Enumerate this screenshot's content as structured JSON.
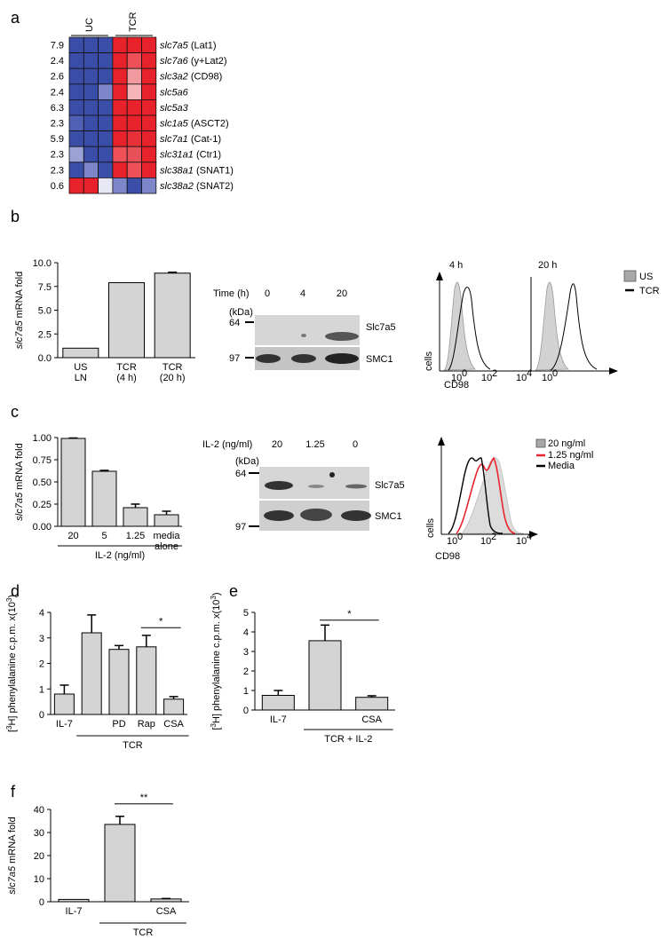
{
  "colors": {
    "blue": "#3a4fa8",
    "red": "#e8252d",
    "bar": "#d4d4d4",
    "flow_red": "#e8252d",
    "flow_grey": "#c8c8c8"
  },
  "panels": {
    "a": "a",
    "b": "b",
    "c": "c",
    "d": "d",
    "e": "e",
    "f": "f"
  },
  "heatmap": {
    "groups": [
      "UC",
      "TCR"
    ],
    "rows": [
      {
        "fold": "7.9",
        "gene": "slc7a5",
        "name": " (Lat1)"
      },
      {
        "fold": "2.4",
        "gene": "slc7a6",
        "name": " (y+Lat2)"
      },
      {
        "fold": "2.6",
        "gene": "slc3a2",
        "name": " (CD98)"
      },
      {
        "fold": "2.4",
        "gene": "slc5a6",
        "name": ""
      },
      {
        "fold": "6.3",
        "gene": "slc5a3",
        "name": ""
      },
      {
        "fold": "2.3",
        "gene": "slc1a5",
        "name": " (ASCT2)"
      },
      {
        "fold": "5.9",
        "gene": "slc7a1",
        "name": " (Cat-1)"
      },
      {
        "fold": "2.3",
        "gene": "slc31a1",
        "name": " (Ctr1)"
      },
      {
        "fold": "2.3",
        "gene": "slc38a1",
        "name": " (SNAT1)"
      },
      {
        "fold": "0.6",
        "gene": "slc38a2",
        "name": " (SNAT2)"
      }
    ],
    "cells": [
      [
        "#3a4ea8",
        "#3a4ea8",
        "#3a4ea8",
        "#e8222b",
        "#e8222b",
        "#e8222b"
      ],
      [
        "#3a4ea8",
        "#3a4ea8",
        "#3a4ea8",
        "#e8222b",
        "#ee5058",
        "#e8222b"
      ],
      [
        "#3a4ea8",
        "#3a4ea8",
        "#3a4ea8",
        "#e8222b",
        "#f09aa0",
        "#e8222b"
      ],
      [
        "#3a4ea8",
        "#3a4ea8",
        "#7c86c8",
        "#e8222b",
        "#f4b4b8",
        "#e8222b"
      ],
      [
        "#3a4ea8",
        "#3a4ea8",
        "#3a4ea8",
        "#e8222b",
        "#e8222b",
        "#e8222b"
      ],
      [
        "#5060b4",
        "#3a4ea8",
        "#3a4ea8",
        "#e8222b",
        "#e8222b",
        "#e8222b"
      ],
      [
        "#3a4ea8",
        "#3a4ea8",
        "#3a4ea8",
        "#e8222b",
        "#e83038",
        "#e8222b"
      ],
      [
        "#9aa2d6",
        "#3a4ea8",
        "#3a4ea8",
        "#ee5058",
        "#e85058",
        "#e8222b"
      ],
      [
        "#3a4ea8",
        "#7c86c8",
        "#3a4ea8",
        "#e8222b",
        "#ee5058",
        "#e8222b"
      ],
      [
        "#e8222b",
        "#e8222b",
        "#e8e8f4",
        "#7c86c8",
        "#3a4ea8",
        "#7c86c8"
      ]
    ]
  },
  "chart_data": [
    {
      "panel": "b",
      "type": "bar",
      "categories": [
        "US LN",
        "TCR (4 h)",
        "TCR (20 h)"
      ],
      "cat_lines": [
        [
          "US",
          "LN"
        ],
        [
          "TCR",
          "(4 h)"
        ],
        [
          "TCR",
          "(20 h)"
        ]
      ],
      "values": [
        1.0,
        7.9,
        8.9
      ],
      "errors": [
        0,
        0,
        0.1
      ],
      "ylabel": "slc7a5 mRNA fold",
      "ylim": [
        0,
        10
      ],
      "yticks": [
        "0.0",
        "2.5",
        "5.0",
        "7.5",
        "10.0"
      ],
      "group_label": "",
      "sig": ""
    },
    {
      "panel": "c",
      "type": "bar",
      "categories": [
        "20",
        "5",
        "1.25",
        "media alone"
      ],
      "cat_lines": [
        [
          "20"
        ],
        [
          "5"
        ],
        [
          "1.25"
        ],
        [
          "media",
          "alone"
        ]
      ],
      "values": [
        0.99,
        0.62,
        0.21,
        0.13
      ],
      "errors": [
        0.005,
        0.01,
        0.04,
        0.04
      ],
      "ylabel": "slc7a5 mRNA fold",
      "ylim": [
        0,
        1
      ],
      "yticks": [
        "0.00",
        "0.25",
        "0.50",
        "0.75",
        "1.00"
      ],
      "group_label": "IL-2 (ng/ml)",
      "sig": ""
    },
    {
      "panel": "d",
      "type": "bar",
      "categories": [
        "IL-7",
        "",
        "PD",
        "Rap",
        "CSA"
      ],
      "cat_lines": [
        [
          "IL-7"
        ],
        [
          ""
        ],
        [
          "PD"
        ],
        [
          "Rap"
        ],
        [
          "CSA"
        ]
      ],
      "values": [
        0.8,
        3.2,
        2.55,
        2.65,
        0.6
      ],
      "errors": [
        0.35,
        0.7,
        0.15,
        0.45,
        0.1
      ],
      "ylabel": "[3H] phenylalanine c.p.m. x(10 3)",
      "ylim": [
        0,
        4
      ],
      "yticks": [
        "0",
        "1",
        "2",
        "3",
        "4"
      ],
      "group_label": "TCR",
      "sig": "*"
    },
    {
      "panel": "e",
      "type": "bar",
      "categories": [
        "IL-7",
        "",
        "CSA"
      ],
      "cat_lines": [
        [
          "IL-7"
        ],
        [
          ""
        ],
        [
          "CSA"
        ]
      ],
      "values": [
        0.75,
        3.55,
        0.65
      ],
      "errors": [
        0.25,
        0.8,
        0.08
      ],
      "ylabel": "[3H] phenylalanine c.p.m. x(10 3)",
      "ylim": [
        0,
        5
      ],
      "yticks": [
        "0",
        "1",
        "2",
        "3",
        "4",
        "5"
      ],
      "group_label": "TCR + IL-2",
      "sig": "*"
    },
    {
      "panel": "f",
      "type": "bar",
      "categories": [
        "IL-7",
        "",
        "CSA"
      ],
      "cat_lines": [
        [
          "IL-7"
        ],
        [
          ""
        ],
        [
          "CSA"
        ]
      ],
      "values": [
        1.0,
        33.5,
        1.2
      ],
      "errors": [
        0,
        3.5,
        0.2
      ],
      "ylabel": "slc7a5 mRNA fold",
      "ylim": [
        0,
        40
      ],
      "yticks": [
        "0",
        "10",
        "20",
        "30",
        "40"
      ],
      "group_label": "TCR",
      "sig": "**"
    }
  ],
  "blot_b": {
    "header": "Time (h)",
    "lanes": [
      "0",
      "4",
      "20"
    ],
    "unit": "(kDa)",
    "mw_top": "64",
    "mw_bottom": "97",
    "band1": "Slc7a5",
    "band2": "SMC1"
  },
  "blot_c": {
    "header": "IL-2 (ng/ml)",
    "lanes": [
      "20",
      "1.25",
      "0"
    ],
    "unit": "(kDa)",
    "mw_top": "64",
    "mw_bottom": "97",
    "band1": "Slc7a5",
    "band2": "SMC1"
  },
  "flow_b": {
    "panel1": "4 h",
    "panel2": "20 h",
    "ylabel": "cells",
    "xlabel": "CD98",
    "tick0": "10",
    "tick0_exp": "0",
    "tick2": "10",
    "tick2_exp": "2",
    "tick4": "10",
    "tick4_exp": "4",
    "legend_us": "US",
    "legend_tcr": "TCR"
  },
  "flow_c": {
    "ylabel": "cells",
    "xlabel": "CD98",
    "tick0": "10",
    "tick0_exp": "0",
    "tick2": "10",
    "tick2_exp": "2",
    "tick4": "10",
    "tick4_exp": "4",
    "legend": [
      "20 ng/ml",
      "1.25 ng/ml",
      "Media"
    ]
  }
}
